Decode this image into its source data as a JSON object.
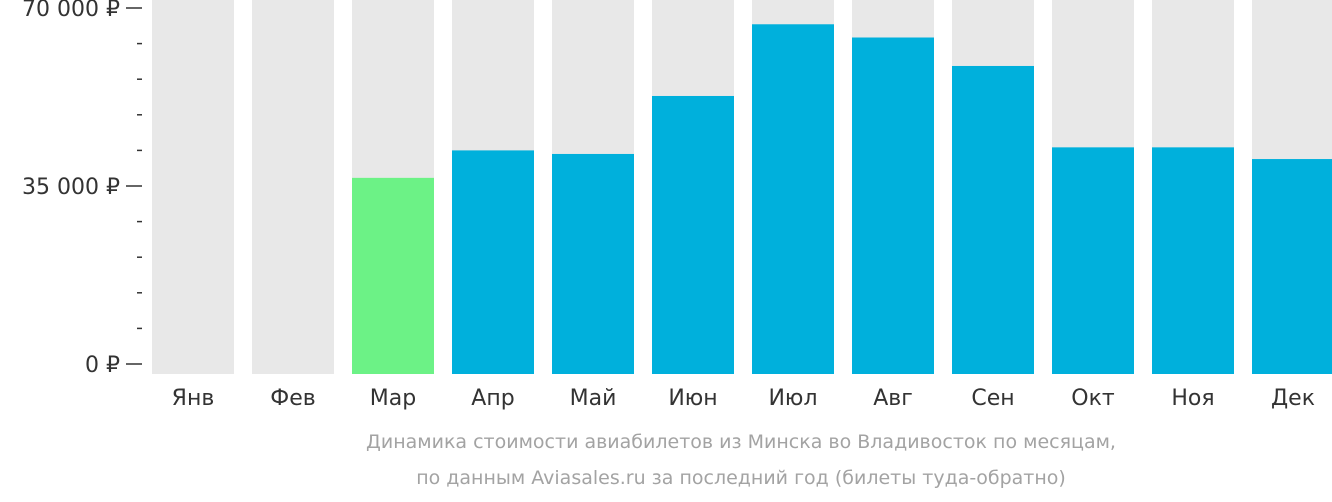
{
  "chart_data": {
    "type": "bar",
    "categories": [
      "Янв",
      "Фев",
      "Мар",
      "Апр",
      "Май",
      "Июн",
      "Июл",
      "Авг",
      "Сен",
      "Окт",
      "Ноя",
      "Дек"
    ],
    "values": [
      null,
      null,
      36600,
      42000,
      41300,
      52700,
      66800,
      64200,
      58600,
      42600,
      42600,
      40300
    ],
    "highlight_index": 2,
    "ylim": [
      0,
      70000
    ],
    "yticks": [
      {
        "value": 0,
        "label": "0 ₽"
      },
      {
        "value": 35000,
        "label": "35 000 ₽"
      },
      {
        "value": 70000,
        "label": "70 000 ₽"
      }
    ],
    "minor_tick_step": 7000,
    "grid": false,
    "colors": {
      "background_bar": "#e8e8e8",
      "bar": "#00b0dc",
      "highlight_bar": "#6cf286",
      "axis": "#333333"
    }
  },
  "caption": {
    "line1": "Динамика стоимости авиабилетов из Минска во Владивосток по месяцам,",
    "line2": "по данным Aviasales.ru за последний год (билеты туда-обратно)"
  }
}
